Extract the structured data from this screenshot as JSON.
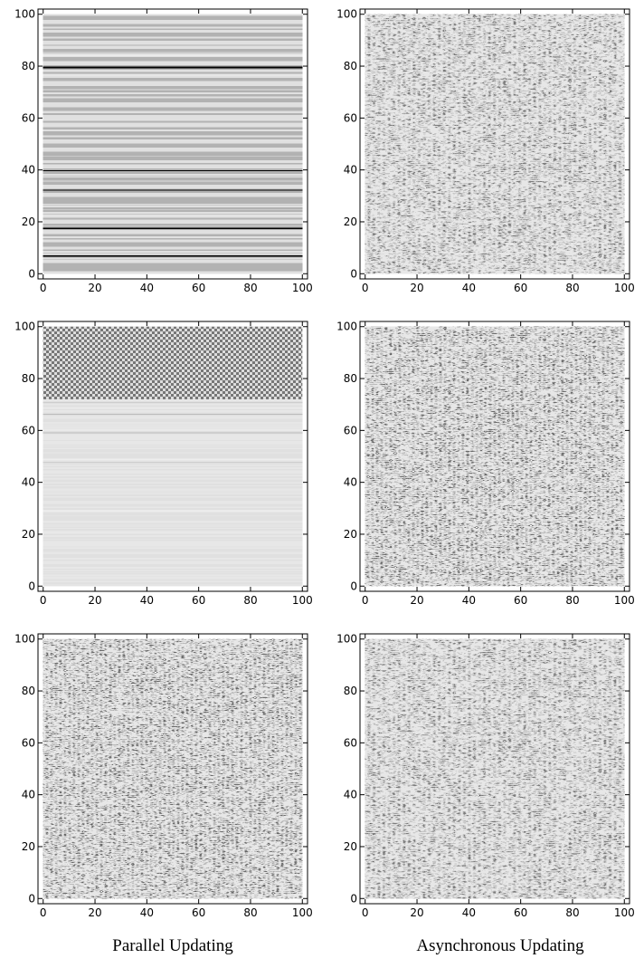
{
  "captions": [
    "Parallel Updating",
    "Asynchronous Updating"
  ],
  "chart_data": [
    {
      "type": "heatmap",
      "xlim": [
        -2,
        102
      ],
      "ylim": [
        -2,
        102
      ],
      "xticks": [
        0,
        20,
        40,
        60,
        80,
        100
      ],
      "yticks": [
        0,
        20,
        40,
        60,
        80,
        100
      ]
    },
    {
      "type": "heatmap",
      "xlim": [
        -2,
        102
      ],
      "ylim": [
        -2,
        102
      ],
      "xticks": [
        0,
        20,
        40,
        60,
        80,
        100
      ],
      "yticks": [
        0,
        20,
        40,
        60,
        80,
        100
      ]
    },
    {
      "type": "heatmap",
      "xlim": [
        -2,
        102
      ],
      "ylim": [
        -2,
        102
      ],
      "xticks": [
        0,
        20,
        40,
        60,
        80,
        100
      ],
      "yticks": [
        0,
        20,
        40,
        60,
        80,
        100
      ]
    },
    {
      "type": "heatmap",
      "xlim": [
        -2,
        102
      ],
      "ylim": [
        -2,
        102
      ],
      "xticks": [
        0,
        20,
        40,
        60,
        80,
        100
      ],
      "yticks": [
        0,
        20,
        40,
        60,
        80,
        100
      ]
    },
    {
      "type": "heatmap",
      "xlim": [
        -2,
        102
      ],
      "ylim": [
        -2,
        102
      ],
      "xticks": [
        0,
        20,
        40,
        60,
        80,
        100
      ],
      "yticks": [
        0,
        20,
        40,
        60,
        80,
        100
      ]
    },
    {
      "type": "heatmap",
      "xlim": [
        -2,
        102
      ],
      "ylim": [
        -2,
        102
      ],
      "xticks": [
        0,
        20,
        40,
        60,
        80,
        100
      ],
      "yticks": [
        0,
        20,
        40,
        60,
        80,
        100
      ]
    }
  ]
}
